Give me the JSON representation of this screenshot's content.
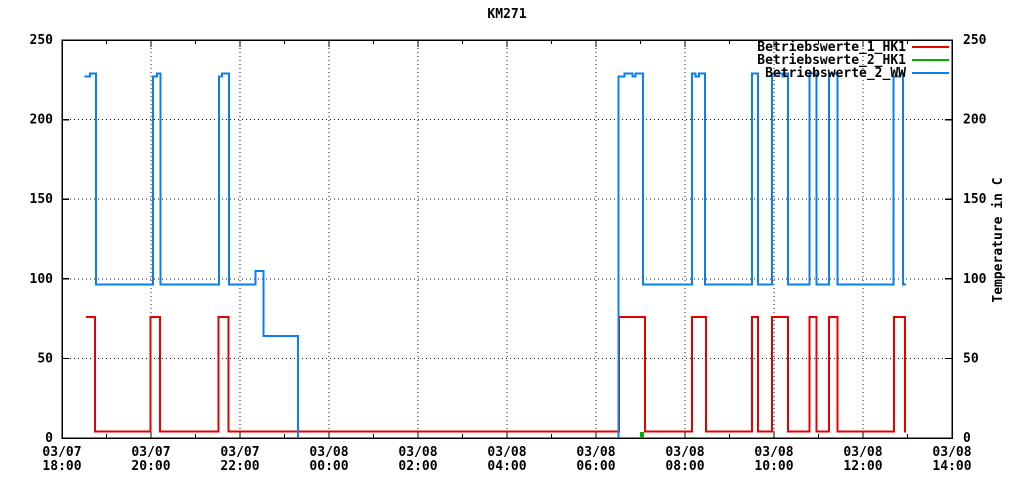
{
  "chart_data": {
    "type": "line",
    "title": "KM271",
    "ylabel_right": "Temperature in C",
    "x_axis": {
      "unit": "hours_after_first_tick",
      "range": [
        0,
        20
      ],
      "major_tick_every_h": 2,
      "minor_tick_every_h": 1,
      "tick_labels": [
        {
          "date": "03/07",
          "time": "18:00"
        },
        {
          "date": "03/07",
          "time": "20:00"
        },
        {
          "date": "03/07",
          "time": "22:00"
        },
        {
          "date": "03/08",
          "time": "00:00"
        },
        {
          "date": "03/08",
          "time": "02:00"
        },
        {
          "date": "03/08",
          "time": "04:00"
        },
        {
          "date": "03/08",
          "time": "06:00"
        },
        {
          "date": "03/08",
          "time": "08:00"
        },
        {
          "date": "03/08",
          "time": "10:00"
        },
        {
          "date": "03/08",
          "time": "12:00"
        },
        {
          "date": "03/08",
          "time": "14:00"
        }
      ]
    },
    "y_axis": {
      "range": [
        0,
        250
      ],
      "ticks": [
        0,
        50,
        100,
        150,
        200,
        250
      ],
      "mirrored": true
    },
    "grid": {
      "shown": true,
      "style": "dotted",
      "color": "#14142e"
    },
    "legend": {
      "position": "top-right",
      "entries": [
        {
          "label": "Betriebswerte_1_HK1",
          "color": "#e60000"
        },
        {
          "label": "Betriebswerte_2_HK1",
          "color": "#00b000"
        },
        {
          "label": "Betriebswerte_2_WW",
          "color": "#0a80f0"
        }
      ]
    },
    "series": [
      {
        "name": "Betriebswerte_1_HK1",
        "color": "#e60000",
        "segments": [
          [
            [
              0.54,
              76
            ],
            [
              0.74,
              76
            ],
            [
              0.74,
              4
            ],
            [
              1.99,
              4
            ],
            [
              1.99,
              76
            ],
            [
              2.2,
              76
            ],
            [
              2.2,
              4
            ],
            [
              3.52,
              4
            ],
            [
              3.52,
              76
            ],
            [
              3.74,
              76
            ],
            [
              3.74,
              4
            ],
            [
              12.52,
              4
            ],
            [
              12.52,
              76
            ],
            [
              13.1,
              76
            ],
            [
              13.1,
              4
            ],
            [
              14.16,
              4
            ],
            [
              14.16,
              76
            ],
            [
              14.47,
              76
            ],
            [
              14.47,
              4
            ],
            [
              15.51,
              4
            ],
            [
              15.51,
              76
            ],
            [
              15.64,
              76
            ],
            [
              15.64,
              4
            ],
            [
              15.96,
              4
            ],
            [
              15.96,
              76
            ],
            [
              16.32,
              76
            ],
            [
              16.32,
              4
            ],
            [
              16.8,
              4
            ],
            [
              16.8,
              76
            ],
            [
              16.96,
              76
            ],
            [
              16.96,
              4
            ],
            [
              17.24,
              4
            ],
            [
              17.24,
              76
            ],
            [
              17.43,
              76
            ],
            [
              17.43,
              4
            ],
            [
              18.7,
              4
            ],
            [
              18.7,
              76
            ],
            [
              18.94,
              76
            ],
            [
              18.94,
              4
            ],
            [
              18.97,
              4
            ]
          ]
        ]
      },
      {
        "name": "Betriebswerte_2_HK1",
        "color": "#00b000",
        "segments": [
          [
            [
              13.01,
              0
            ],
            [
              13.01,
              3
            ],
            [
              13.06,
              3
            ],
            [
              13.06,
              0
            ]
          ]
        ]
      },
      {
        "name": "Betriebswerte_2_WW",
        "color": "#0a80f0",
        "segments": [
          [
            [
              0.51,
              227
            ],
            [
              0.63,
              227
            ],
            [
              0.63,
              229
            ],
            [
              0.76,
              229
            ],
            [
              0.76,
              96.5
            ],
            [
              2.04,
              96.5
            ],
            [
              2.04,
              227
            ],
            [
              2.13,
              227
            ],
            [
              2.13,
              229
            ],
            [
              2.21,
              229
            ],
            [
              2.21,
              96.5
            ],
            [
              3.53,
              96.5
            ],
            [
              3.53,
              227
            ],
            [
              3.6,
              227
            ],
            [
              3.6,
              229
            ],
            [
              3.75,
              229
            ],
            [
              3.75,
              96.5
            ],
            [
              4.35,
              96.5
            ],
            [
              4.35,
              105
            ],
            [
              4.53,
              105
            ],
            [
              4.53,
              64
            ],
            [
              5.3,
              64
            ],
            [
              5.3,
              0
            ]
          ],
          [
            [
              12.5,
              0
            ],
            [
              12.5,
              227
            ],
            [
              12.64,
              227
            ],
            [
              12.64,
              229
            ],
            [
              12.82,
              229
            ],
            [
              12.82,
              227
            ],
            [
              12.89,
              227
            ],
            [
              12.89,
              229
            ],
            [
              13.06,
              229
            ],
            [
              13.06,
              96.5
            ],
            [
              14.16,
              96.5
            ],
            [
              14.16,
              229
            ],
            [
              14.24,
              229
            ],
            [
              14.24,
              227
            ],
            [
              14.32,
              227
            ],
            [
              14.32,
              229
            ],
            [
              14.45,
              229
            ],
            [
              14.45,
              96.5
            ],
            [
              15.51,
              96.5
            ],
            [
              15.51,
              229
            ],
            [
              15.64,
              229
            ],
            [
              15.64,
              96.5
            ],
            [
              15.96,
              96.5
            ],
            [
              15.96,
              229
            ],
            [
              16.19,
              229
            ],
            [
              16.19,
              227
            ],
            [
              16.25,
              227
            ],
            [
              16.25,
              229
            ],
            [
              16.32,
              229
            ],
            [
              16.32,
              96.5
            ],
            [
              16.8,
              96.5
            ],
            [
              16.8,
              229
            ],
            [
              16.96,
              229
            ],
            [
              16.96,
              96.5
            ],
            [
              17.24,
              96.5
            ],
            [
              17.24,
              229
            ],
            [
              17.43,
              229
            ],
            [
              17.43,
              96.5
            ],
            [
              18.69,
              96.5
            ],
            [
              18.69,
              227
            ],
            [
              18.83,
              227
            ],
            [
              18.83,
              229
            ],
            [
              18.9,
              229
            ],
            [
              18.9,
              96.5
            ],
            [
              18.97,
              96.5
            ]
          ]
        ]
      }
    ]
  }
}
